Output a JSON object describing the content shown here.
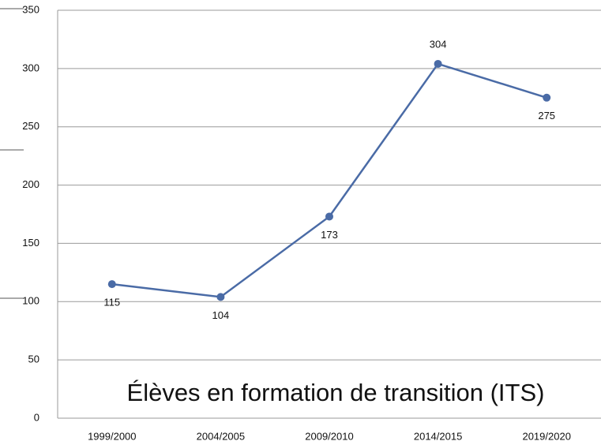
{
  "chart_data": {
    "type": "line",
    "title": "Élèves en formation de transition (ITS)",
    "categories": [
      "1999/2000",
      "2004/2005",
      "2009/2010",
      "2014/2015",
      "2019/2020"
    ],
    "values": [
      115,
      104,
      173,
      304,
      275
    ],
    "color": "#4a6ba6",
    "ylim": [
      0,
      350
    ],
    "yticks": [
      0,
      50,
      100,
      150,
      200,
      250,
      300,
      350
    ],
    "grid": true
  }
}
